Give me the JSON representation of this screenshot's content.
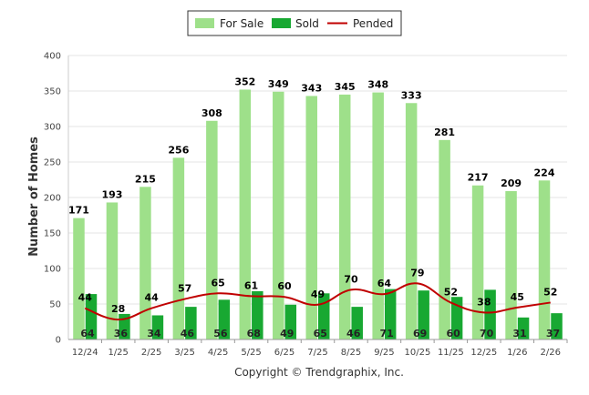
{
  "chart_data": {
    "type": "bar",
    "categories": [
      "12/24",
      "1/25",
      "2/25",
      "3/25",
      "4/25",
      "5/25",
      "6/25",
      "7/25",
      "8/25",
      "9/25",
      "10/25",
      "11/25",
      "12/25",
      "1/26",
      "2/26"
    ],
    "series": [
      {
        "name": "For Sale",
        "type": "bar",
        "values": [
          171,
          193,
          215,
          256,
          308,
          352,
          349,
          343,
          345,
          348,
          333,
          281,
          217,
          209,
          224
        ]
      },
      {
        "name": "Sold",
        "type": "bar",
        "values": [
          64,
          36,
          34,
          46,
          56,
          68,
          49,
          65,
          46,
          71,
          69,
          60,
          70,
          31,
          37
        ]
      },
      {
        "name": "Pended",
        "type": "line",
        "values": [
          44,
          28,
          44,
          57,
          65,
          61,
          60,
          49,
          70,
          64,
          79,
          52,
          38,
          45,
          52
        ]
      }
    ],
    "ylabel": "Number of Homes",
    "ylim": [
      0,
      400
    ],
    "yticks": [
      0,
      50,
      100,
      150,
      200,
      250,
      300,
      350,
      400
    ],
    "grid": true,
    "legend": "top-center",
    "colors": {
      "for_sale": "#9ee08a",
      "sold": "#18a832",
      "pended": "#c00000"
    }
  },
  "footer": {
    "copyright": "Copyright © Trendgraphix, Inc."
  }
}
